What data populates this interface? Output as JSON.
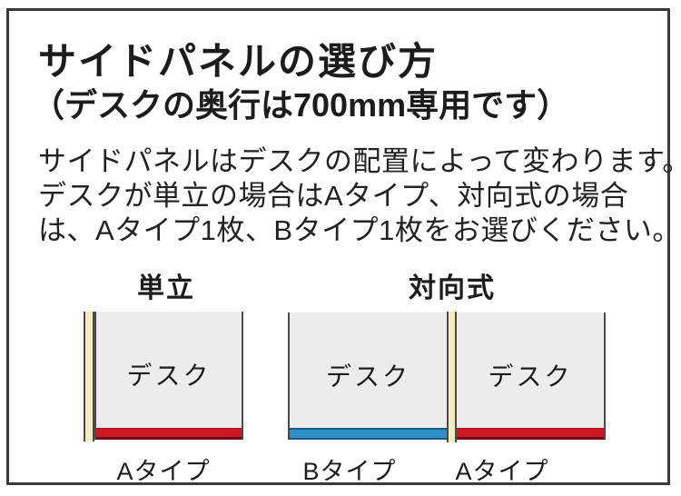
{
  "header": {
    "title": "サイドパネルの選び方",
    "subtitle": "（デスクの奥行は700mm専用です）"
  },
  "description": {
    "lines": [
      "サイドパネルはデスクの配置によって変わります。",
      "デスクが単立の場合はAタイプ、対向式の場合",
      "は、Aタイプ1枚、Bタイプ1枚をお選びください。"
    ]
  },
  "diagrams": {
    "standalone": {
      "heading": "単立",
      "desk_label": "デスク",
      "type_label": "Aタイプ"
    },
    "facing": {
      "heading": "対向式",
      "left_desk_label": "デスク",
      "right_desk_label": "デスク",
      "left_type_label": "Bタイプ",
      "right_type_label": "Aタイプ"
    }
  },
  "colors": {
    "a_type_red": "#cd1826",
    "b_type_blue": "#2e8fc9",
    "side_panel_beige": "#f4ecc9",
    "desk_gray": "#ededee"
  }
}
